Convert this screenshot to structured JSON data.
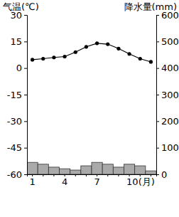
{
  "chart_data": {
    "type": "climate",
    "y_label": "气温(℃)",
    "y2_label": "降水量(mm)",
    "categories": [
      "1",
      null,
      null,
      "4",
      null,
      null,
      "7",
      null,
      null,
      "10(月)",
      null,
      null
    ],
    "series": [
      {
        "type": "bar",
        "axis": "y2",
        "color": "#aaaaaa",
        "values": [
          45,
          38,
          27,
          21,
          16,
          32,
          45,
          38,
          27,
          38,
          32,
          13
        ]
      },
      {
        "type": "line",
        "axis": "y",
        "color": "#000000",
        "marker": "circle",
        "values": [
          4.7,
          5.3,
          6,
          6.5,
          9,
          12,
          14,
          13.5,
          11,
          8,
          5.3,
          3.5
        ]
      }
    ],
    "ylim": [
      -60,
      30
    ],
    "yticks": [
      -60,
      -45,
      -30,
      -15,
      0,
      15,
      30
    ],
    "y2lim": [
      0,
      600
    ],
    "y2ticks": [
      0,
      100,
      200,
      300,
      400,
      500,
      600
    ]
  }
}
